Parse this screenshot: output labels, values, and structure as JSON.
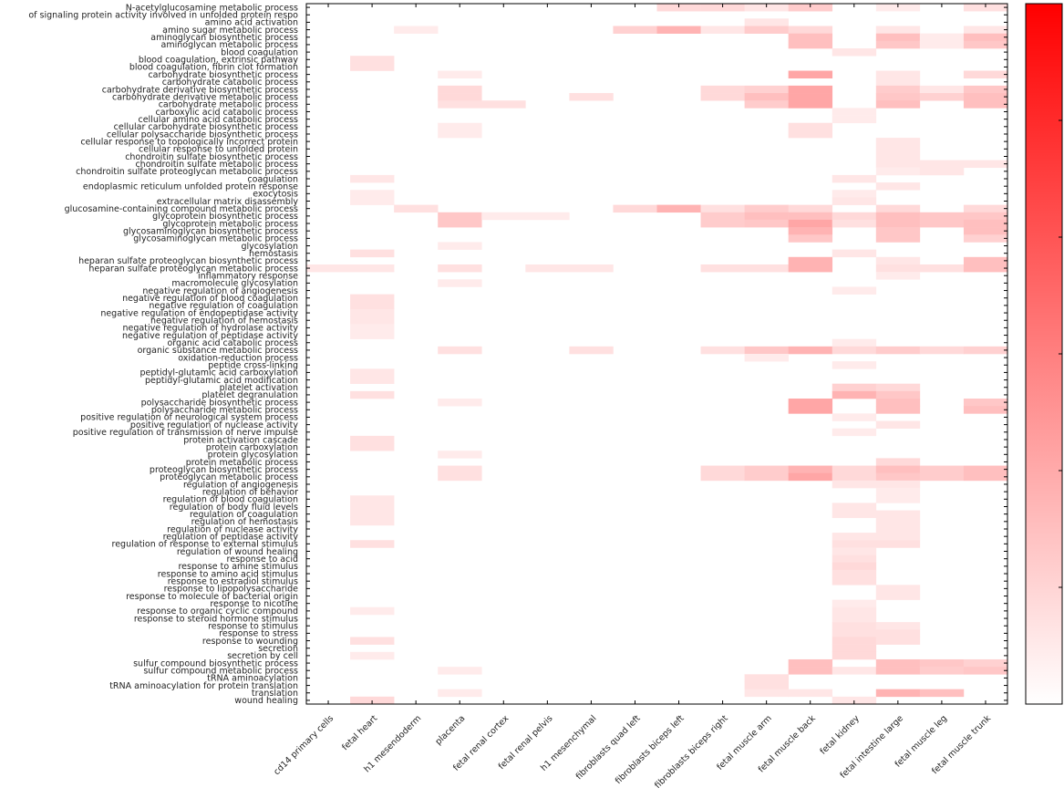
{
  "chart_data": {
    "type": "heatmap",
    "title": "",
    "xlabel": "",
    "ylabel": "",
    "colorscale": {
      "low": "#ffffff",
      "high": "#ff0000",
      "vmin": 0,
      "vmax": 1
    },
    "columns": [
      "cd14 primary cells",
      "fetal heart",
      "h1 mesendoderm",
      "placenta",
      "fetal renal cortex",
      "fetal renal pelvis",
      "h1 mesenchymal",
      "fibroblasts quad left",
      "fibroblasts biceps left",
      "fibroblasts biceps right",
      "fetal muscle arm",
      "fetal muscle back",
      "fetal kidney",
      "fetal intestine large",
      "fetal muscle leg",
      "fetal muscle trunk"
    ],
    "rows": [
      "N-acetylglucosamine metabolic process",
      "of signaling protein activity involved in unfolded protein respo",
      "amino acid activation",
      "amino sugar metabolic process",
      "aminoglycan biosynthetic process",
      "aminoglycan metabolic process",
      "blood coagulation",
      "blood coagulation, extrinsic pathway",
      "blood coagulation, fibrin clot formation",
      "carbohydrate biosynthetic process",
      "carbohydrate catabolic process",
      "carbohydrate derivative biosynthetic process",
      "carbohydrate derivative metabolic process",
      "carbohydrate metabolic process",
      "carboxylic acid catabolic process",
      "cellular amino acid catabolic process",
      "cellular carbohydrate biosynthetic process",
      "cellular polysaccharide biosynthetic process",
      "cellular response to topologically incorrect protein",
      "cellular response to unfolded protein",
      "chondroitin sulfate biosynthetic process",
      "chondroitin sulfate metabolic process",
      "chondroitin sulfate proteoglycan metabolic process",
      "coagulation",
      "endoplasmic reticulum unfolded protein response",
      "exocytosis",
      "extracellular matrix disassembly",
      "glucosamine-containing compound metabolic process",
      "glycoprotein biosynthetic process",
      "glycoprotein metabolic process",
      "glycosaminoglycan biosynthetic process",
      "glycosaminoglycan metabolic process",
      "glycosylation",
      "hemostasis",
      "heparan sulfate proteoglycan biosynthetic process",
      "heparan sulfate proteoglycan metabolic process",
      "inflammatory response",
      "macromolecule glycosylation",
      "negative regulation of angiogenesis",
      "negative regulation of blood coagulation",
      "negative regulation of coagulation",
      "negative regulation of endopeptidase activity",
      "negative regulation of hemostasis",
      "negative regulation of hydrolase activity",
      "negative regulation of peptidase activity",
      "organic acid catabolic process",
      "organic substance metabolic process",
      "oxidation-reduction process",
      "peptide cross-linking",
      "peptidyl-glutamic acid carboxylation",
      "peptidyl-glutamic acid modification",
      "platelet activation",
      "platelet degranulation",
      "polysaccharide biosynthetic process",
      "polysaccharide metabolic process",
      "positive regulation of neurological system process",
      "positive regulation of nuclease activity",
      "positive regulation of transmission of nerve impulse",
      "protein activation cascade",
      "protein carboxylation",
      "protein glycosylation",
      "protein metabolic process",
      "proteoglycan biosynthetic process",
      "proteoglycan metabolic process",
      "regulation of angiogenesis",
      "regulation of behavior",
      "regulation of blood coagulation",
      "regulation of body fluid levels",
      "regulation of coagulation",
      "regulation of hemostasis",
      "regulation of nuclease activity",
      "regulation of peptidase activity",
      "regulation of response to external stimulus",
      "regulation of wound healing",
      "response to acid",
      "response to amine stimulus",
      "response to amino acid stimulus",
      "response to estradiol stimulus",
      "response to lipopolysaccharide",
      "response to molecule of bacterial origin",
      "response to nicotine",
      "response to organic cyclic compound",
      "response to steroid hormone stimulus",
      "response to stimulus",
      "response to stress",
      "response to wounding",
      "secretion",
      "secretion by cell",
      "sulfur compound biosynthetic process",
      "sulfur compound metabolic process",
      "tRNA aminoacylation",
      "tRNA aminoacylation for protein translation",
      "translation",
      "wound healing"
    ],
    "cells": [
      [
        0,
        8,
        0.15
      ],
      [
        0,
        9,
        0.15
      ],
      [
        0,
        10,
        0.1
      ],
      [
        0,
        11,
        0.2
      ],
      [
        0,
        13,
        0.08
      ],
      [
        0,
        15,
        0.12
      ],
      [
        2,
        10,
        0.1
      ],
      [
        3,
        2,
        0.08
      ],
      [
        3,
        7,
        0.18
      ],
      [
        3,
        8,
        0.3
      ],
      [
        3,
        9,
        0.1
      ],
      [
        3,
        10,
        0.2
      ],
      [
        3,
        11,
        0.15
      ],
      [
        3,
        13,
        0.1
      ],
      [
        3,
        15,
        0.1
      ],
      [
        4,
        11,
        0.25
      ],
      [
        4,
        13,
        0.25
      ],
      [
        4,
        14,
        0.08
      ],
      [
        4,
        15,
        0.25
      ],
      [
        5,
        11,
        0.25
      ],
      [
        5,
        13,
        0.22
      ],
      [
        5,
        14,
        0.08
      ],
      [
        5,
        15,
        0.22
      ],
      [
        6,
        12,
        0.1
      ],
      [
        7,
        1,
        0.12
      ],
      [
        8,
        1,
        0.12
      ],
      [
        9,
        3,
        0.08
      ],
      [
        9,
        11,
        0.35
      ],
      [
        9,
        13,
        0.1
      ],
      [
        9,
        15,
        0.15
      ],
      [
        10,
        13,
        0.1
      ],
      [
        11,
        3,
        0.15
      ],
      [
        11,
        9,
        0.15
      ],
      [
        11,
        10,
        0.18
      ],
      [
        11,
        11,
        0.35
      ],
      [
        11,
        13,
        0.2
      ],
      [
        11,
        14,
        0.1
      ],
      [
        11,
        15,
        0.22
      ],
      [
        12,
        3,
        0.15
      ],
      [
        12,
        6,
        0.12
      ],
      [
        12,
        9,
        0.15
      ],
      [
        12,
        10,
        0.25
      ],
      [
        12,
        11,
        0.35
      ],
      [
        12,
        13,
        0.22
      ],
      [
        12,
        14,
        0.18
      ],
      [
        12,
        15,
        0.25
      ],
      [
        13,
        3,
        0.12
      ],
      [
        13,
        4,
        0.12
      ],
      [
        13,
        10,
        0.2
      ],
      [
        13,
        11,
        0.35
      ],
      [
        13,
        13,
        0.25
      ],
      [
        13,
        15,
        0.25
      ],
      [
        14,
        12,
        0.08
      ],
      [
        15,
        12,
        0.08
      ],
      [
        16,
        3,
        0.08
      ],
      [
        16,
        11,
        0.12
      ],
      [
        17,
        3,
        0.08
      ],
      [
        17,
        11,
        0.12
      ],
      [
        18,
        13,
        0.1
      ],
      [
        19,
        13,
        0.1
      ],
      [
        20,
        13,
        0.1
      ],
      [
        21,
        13,
        0.1
      ],
      [
        21,
        14,
        0.1
      ],
      [
        21,
        15,
        0.1
      ],
      [
        22,
        13,
        0.08
      ],
      [
        22,
        14,
        0.1
      ],
      [
        23,
        1,
        0.1
      ],
      [
        23,
        12,
        0.1
      ],
      [
        24,
        13,
        0.1
      ],
      [
        25,
        1,
        0.08
      ],
      [
        25,
        12,
        0.08
      ],
      [
        26,
        1,
        0.08
      ],
      [
        26,
        12,
        0.1
      ],
      [
        27,
        2,
        0.12
      ],
      [
        27,
        7,
        0.15
      ],
      [
        27,
        8,
        0.3
      ],
      [
        27,
        9,
        0.12
      ],
      [
        27,
        10,
        0.2
      ],
      [
        27,
        11,
        0.15
      ],
      [
        27,
        13,
        0.15
      ],
      [
        27,
        15,
        0.15
      ],
      [
        28,
        3,
        0.22
      ],
      [
        28,
        4,
        0.08
      ],
      [
        28,
        5,
        0.08
      ],
      [
        28,
        9,
        0.2
      ],
      [
        28,
        10,
        0.25
      ],
      [
        28,
        11,
        0.25
      ],
      [
        28,
        12,
        0.15
      ],
      [
        28,
        13,
        0.25
      ],
      [
        28,
        14,
        0.22
      ],
      [
        28,
        15,
        0.22
      ],
      [
        29,
        3,
        0.22
      ],
      [
        29,
        9,
        0.2
      ],
      [
        29,
        10,
        0.22
      ],
      [
        29,
        11,
        0.35
      ],
      [
        29,
        12,
        0.12
      ],
      [
        29,
        13,
        0.25
      ],
      [
        29,
        14,
        0.22
      ],
      [
        29,
        15,
        0.25
      ],
      [
        30,
        11,
        0.3
      ],
      [
        30,
        13,
        0.22
      ],
      [
        30,
        15,
        0.25
      ],
      [
        31,
        11,
        0.22
      ],
      [
        31,
        13,
        0.22
      ],
      [
        31,
        15,
        0.18
      ],
      [
        32,
        3,
        0.08
      ],
      [
        33,
        1,
        0.12
      ],
      [
        33,
        12,
        0.1
      ],
      [
        34,
        11,
        0.3
      ],
      [
        34,
        13,
        0.1
      ],
      [
        34,
        15,
        0.25
      ],
      [
        35,
        0,
        0.1
      ],
      [
        35,
        1,
        0.1
      ],
      [
        35,
        3,
        0.12
      ],
      [
        35,
        5,
        0.1
      ],
      [
        35,
        6,
        0.1
      ],
      [
        35,
        9,
        0.12
      ],
      [
        35,
        10,
        0.12
      ],
      [
        35,
        11,
        0.3
      ],
      [
        35,
        13,
        0.12
      ],
      [
        35,
        14,
        0.12
      ],
      [
        35,
        15,
        0.25
      ],
      [
        36,
        13,
        0.08
      ],
      [
        37,
        3,
        0.08
      ],
      [
        38,
        12,
        0.08
      ],
      [
        39,
        1,
        0.12
      ],
      [
        40,
        1,
        0.12
      ],
      [
        41,
        1,
        0.1
      ],
      [
        42,
        1,
        0.1
      ],
      [
        43,
        1,
        0.08
      ],
      [
        44,
        1,
        0.08
      ],
      [
        45,
        12,
        0.08
      ],
      [
        46,
        3,
        0.12
      ],
      [
        46,
        6,
        0.12
      ],
      [
        46,
        9,
        0.12
      ],
      [
        46,
        10,
        0.22
      ],
      [
        46,
        11,
        0.3
      ],
      [
        46,
        12,
        0.15
      ],
      [
        46,
        13,
        0.2
      ],
      [
        46,
        14,
        0.15
      ],
      [
        46,
        15,
        0.18
      ],
      [
        47,
        10,
        0.08
      ],
      [
        48,
        12,
        0.08
      ],
      [
        49,
        1,
        0.1
      ],
      [
        50,
        1,
        0.1
      ],
      [
        51,
        12,
        0.18
      ],
      [
        51,
        13,
        0.15
      ],
      [
        52,
        1,
        0.12
      ],
      [
        52,
        12,
        0.3
      ],
      [
        52,
        13,
        0.22
      ],
      [
        53,
        3,
        0.08
      ],
      [
        53,
        11,
        0.35
      ],
      [
        53,
        13,
        0.25
      ],
      [
        53,
        15,
        0.22
      ],
      [
        54,
        11,
        0.35
      ],
      [
        54,
        13,
        0.25
      ],
      [
        54,
        15,
        0.25
      ],
      [
        55,
        12,
        0.08
      ],
      [
        56,
        13,
        0.1
      ],
      [
        57,
        12,
        0.08
      ],
      [
        58,
        1,
        0.12
      ],
      [
        59,
        1,
        0.12
      ],
      [
        60,
        3,
        0.08
      ],
      [
        61,
        13,
        0.15
      ],
      [
        62,
        3,
        0.12
      ],
      [
        62,
        9,
        0.15
      ],
      [
        62,
        10,
        0.2
      ],
      [
        62,
        11,
        0.3
      ],
      [
        62,
        12,
        0.15
      ],
      [
        62,
        13,
        0.25
      ],
      [
        62,
        14,
        0.2
      ],
      [
        62,
        15,
        0.25
      ],
      [
        63,
        3,
        0.12
      ],
      [
        63,
        9,
        0.15
      ],
      [
        63,
        10,
        0.2
      ],
      [
        63,
        11,
        0.35
      ],
      [
        63,
        12,
        0.15
      ],
      [
        63,
        13,
        0.22
      ],
      [
        63,
        14,
        0.2
      ],
      [
        63,
        15,
        0.25
      ],
      [
        64,
        12,
        0.1
      ],
      [
        64,
        13,
        0.1
      ],
      [
        65,
        13,
        0.08
      ],
      [
        66,
        1,
        0.1
      ],
      [
        66,
        13,
        0.08
      ],
      [
        67,
        1,
        0.1
      ],
      [
        67,
        12,
        0.1
      ],
      [
        68,
        1,
        0.1
      ],
      [
        68,
        12,
        0.1
      ],
      [
        68,
        13,
        0.1
      ],
      [
        69,
        1,
        0.1
      ],
      [
        69,
        13,
        0.1
      ],
      [
        70,
        13,
        0.1
      ],
      [
        71,
        12,
        0.1
      ],
      [
        71,
        13,
        0.1
      ],
      [
        72,
        1,
        0.12
      ],
      [
        72,
        12,
        0.12
      ],
      [
        72,
        13,
        0.12
      ],
      [
        73,
        12,
        0.1
      ],
      [
        74,
        12,
        0.12
      ],
      [
        75,
        12,
        0.15
      ],
      [
        76,
        12,
        0.12
      ],
      [
        77,
        12,
        0.12
      ],
      [
        78,
        13,
        0.1
      ],
      [
        79,
        13,
        0.1
      ],
      [
        80,
        12,
        0.08
      ],
      [
        81,
        1,
        0.08
      ],
      [
        81,
        12,
        0.1
      ],
      [
        82,
        12,
        0.1
      ],
      [
        83,
        12,
        0.12
      ],
      [
        83,
        13,
        0.1
      ],
      [
        84,
        12,
        0.12
      ],
      [
        84,
        13,
        0.12
      ],
      [
        85,
        1,
        0.12
      ],
      [
        85,
        12,
        0.15
      ],
      [
        85,
        13,
        0.12
      ],
      [
        86,
        12,
        0.15
      ],
      [
        87,
        1,
        0.08
      ],
      [
        87,
        12,
        0.15
      ],
      [
        88,
        11,
        0.25
      ],
      [
        88,
        13,
        0.25
      ],
      [
        88,
        14,
        0.22
      ],
      [
        88,
        15,
        0.18
      ],
      [
        89,
        3,
        0.08
      ],
      [
        89,
        11,
        0.25
      ],
      [
        89,
        12,
        0.1
      ],
      [
        89,
        13,
        0.25
      ],
      [
        89,
        14,
        0.2
      ],
      [
        89,
        15,
        0.22
      ],
      [
        90,
        10,
        0.12
      ],
      [
        91,
        10,
        0.12
      ],
      [
        92,
        3,
        0.08
      ],
      [
        92,
        10,
        0.1
      ],
      [
        92,
        11,
        0.1
      ],
      [
        92,
        13,
        0.3
      ],
      [
        92,
        14,
        0.25
      ],
      [
        93,
        1,
        0.15
      ],
      [
        93,
        12,
        0.1
      ]
    ]
  }
}
